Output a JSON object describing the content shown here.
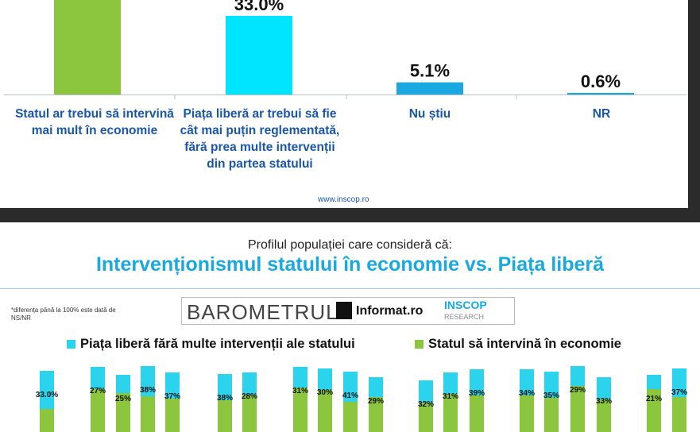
{
  "chart_data": [
    {
      "type": "bar",
      "categories": [
        "Statul ar trebui să intervină mai mult în economie",
        "Piața liberă ar trebui să fie cât mai puțin reglementată, fără prea multe intervenții din partea statului",
        "Nu știu",
        "NR"
      ],
      "values": [
        61.3,
        33.0,
        5.1,
        0.6
      ],
      "data_labels": [
        "",
        "33.0%",
        "5.1%",
        "0.6%"
      ],
      "colors": [
        "#8cc63f",
        "#00e5ff",
        "#19a8e0",
        "#19a8e0"
      ]
    },
    {
      "type": "bar",
      "title": "Intervenționismul statului în economie vs. Piața liberă",
      "subtitle": "Profilul populației care consideră că:",
      "legend": [
        "Piața liberă fără multe intervenții ale statului",
        "Statul să intervină în economie"
      ],
      "legend_colors": [
        "#2bd4ec",
        "#8cc63f"
      ],
      "series": [
        {
          "name": "Piața liberă fără multe intervenții ale statului",
          "values": [
            33.0,
            27,
            25,
            38,
            37,
            38,
            28,
            31,
            30,
            41,
            29,
            32,
            31,
            39,
            34,
            35,
            29,
            33,
            21,
            37
          ],
          "labels": [
            "33.0%",
            "27%",
            "25%",
            "38%",
            "37%",
            "38%",
            "28%",
            "31%",
            "30%",
            "41%",
            "29%",
            "32%",
            "31%",
            "39%",
            "34%",
            "35%",
            "29%",
            "33%",
            "21%",
            "37%"
          ]
        }
      ]
    }
  ],
  "footer": {
    "site": "www.inscop.ro"
  },
  "branding": {
    "barometrul": "BAROMETRUL",
    "informat": "Informat.ro",
    "inscop": "INSCOP",
    "research": "RESEARCH",
    "footnote": "*diferența până la 100% este dată de NS/NR"
  }
}
